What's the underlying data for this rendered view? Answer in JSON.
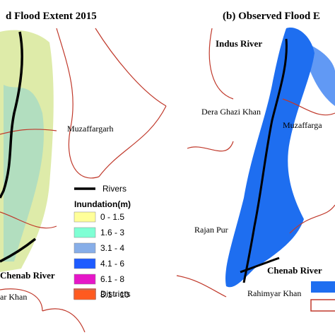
{
  "panels": [
    {
      "title": "d Flood Extent 2015",
      "labels": [
        "Muzaffargarh",
        "Chenab River",
        "ar Khan"
      ],
      "legend": {
        "rivers": "Rivers",
        "heading": "Inundation(m)",
        "items": [
          {
            "label": "0 - 1.5",
            "color": "#ffff99"
          },
          {
            "label": "1.6 - 3",
            "color": "#7fffd4"
          },
          {
            "label": "3.1 - 4",
            "color": "#87aee8"
          },
          {
            "label": "4.1 - 6",
            "color": "#1e5bff"
          },
          {
            "label": "6.1 - 8",
            "color": "#e616c8"
          },
          {
            "label": "8.1 - 10",
            "color": "#ff5a1f"
          }
        ],
        "districts": "Districts"
      }
    },
    {
      "title": "(b) Observed Flood E",
      "labels": [
        "Indus River",
        "Dera Ghazi Khan",
        "Muzaffarga",
        "Rajan Pur",
        "Chenab River",
        "Rahimyar Khan"
      ]
    }
  ]
}
